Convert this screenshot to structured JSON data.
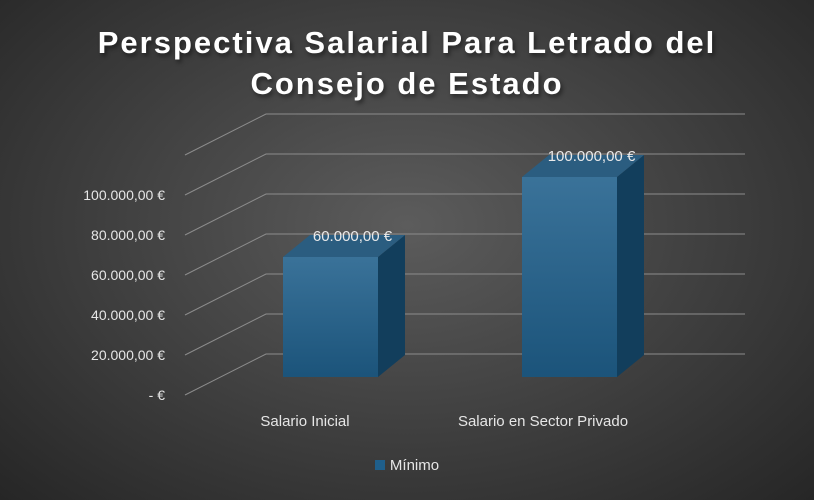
{
  "chart_data": {
    "type": "bar",
    "style": "3d-column",
    "title_lines": [
      "Perspectiva Salarial Para Letrado del",
      "Consejo de Estado"
    ],
    "categories": [
      "Salario Inicial",
      "Salario en Sector Privado"
    ],
    "series": [
      {
        "name": "Mínimo",
        "values": [
          60000,
          100000
        ],
        "color": "#1f5f8b"
      }
    ],
    "data_labels": [
      "60.000,00 €",
      "100.000,00 €"
    ],
    "y_tick_values": [
      0,
      20000,
      40000,
      60000,
      80000,
      100000
    ],
    "y_tick_labels": [
      "-  €",
      "20.000,00 €",
      "40.000,00 €",
      "60.000,00 €",
      "80.000,00 €",
      "100.000,00 €"
    ],
    "ylim": [
      0,
      120000
    ],
    "grid": true,
    "legend_position": "bottom"
  }
}
